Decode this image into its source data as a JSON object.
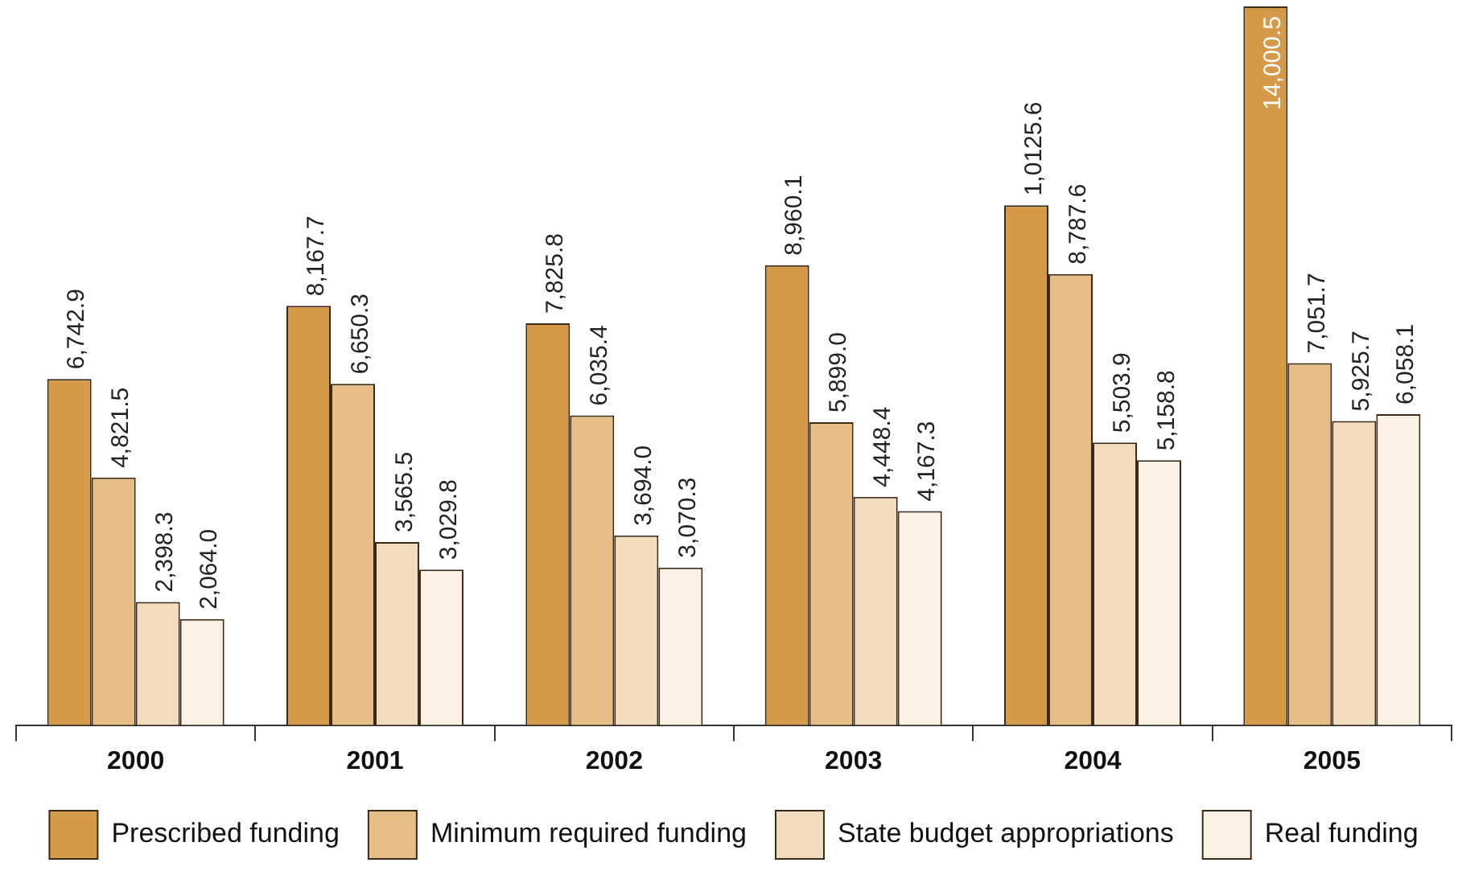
{
  "chart_data": {
    "type": "bar",
    "categories": [
      "2000",
      "2001",
      "2002",
      "2003",
      "2004",
      "2005"
    ],
    "series": [
      {
        "name": "Prescribed funding",
        "color": "#d49a4a",
        "values": [
          6742.9,
          8167.7,
          7825.8,
          8960.1,
          10125.6,
          14000.5
        ],
        "value_labels": [
          "6,742.9",
          "8,167.7",
          "7,825.8",
          "8,960.1",
          "1,0125.6",
          "14,000.5"
        ]
      },
      {
        "name": "Minimum required funding",
        "color": "#e6be85",
        "values": [
          4821.5,
          6650.3,
          6035.4,
          5899.0,
          8787.6,
          7051.7
        ],
        "value_labels": [
          "4,821.5",
          "6,650.3",
          "6,035.4",
          "5,899.0",
          "8,787.6",
          "7,051.7"
        ]
      },
      {
        "name": "State budget appropriations",
        "color": "#f3dcbd",
        "values": [
          2398.3,
          3565.5,
          3694.0,
          4448.4,
          5503.9,
          5925.7
        ],
        "value_labels": [
          "2,398.3",
          "3,565.5",
          "3,694.0",
          "4,448.4",
          "5,503.9",
          "5,925.7"
        ]
      },
      {
        "name": "Real funding",
        "color": "#fcf1e3",
        "values": [
          2064.0,
          3029.8,
          3070.3,
          4167.3,
          5158.8,
          6058.1
        ],
        "value_labels": [
          "2,064.0",
          "3,029.8",
          "3,070.3",
          "4,167.3",
          "5,158.8",
          "6,058.1"
        ]
      }
    ],
    "legend": "bottom",
    "grid": false
  }
}
